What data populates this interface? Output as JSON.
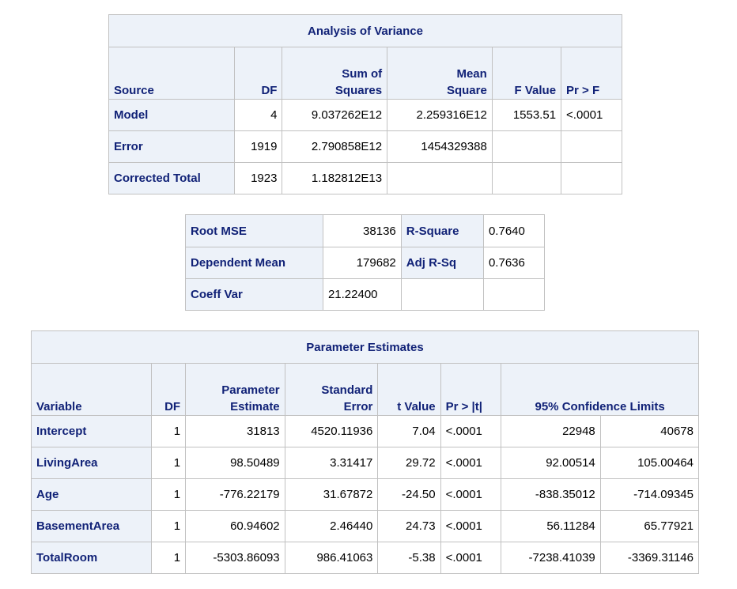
{
  "anova": {
    "title": "Analysis of Variance",
    "headers": {
      "source": "Source",
      "df": "DF",
      "ss_1": "Sum of",
      "ss_2": "Squares",
      "ms_1": "Mean",
      "ms_2": "Square",
      "f": "F Value",
      "p": "Pr > F"
    },
    "rows": [
      {
        "source": "Model",
        "df": "4",
        "ss": "9.037262E12",
        "ms": "2.259316E12",
        "f": "1553.51",
        "p": "<.0001"
      },
      {
        "source": "Error",
        "df": "1919",
        "ss": "2.790858E12",
        "ms": "1454329388",
        "f": "",
        "p": ""
      },
      {
        "source": "Corrected Total",
        "df": "1923",
        "ss": "1.182812E13",
        "ms": "",
        "f": "",
        "p": ""
      }
    ]
  },
  "fit": {
    "rows": [
      {
        "label1": "Root MSE",
        "value1": "38136",
        "label2": "R-Square",
        "value2": "0.7640"
      },
      {
        "label1": "Dependent Mean",
        "value1": "179682",
        "label2": "Adj R-Sq",
        "value2": "0.7636"
      },
      {
        "label1": "Coeff Var",
        "value1": "21.22400",
        "label2": "",
        "value2": ""
      }
    ]
  },
  "params": {
    "title": "Parameter Estimates",
    "headers": {
      "variable": "Variable",
      "df": "DF",
      "est_1": "Parameter",
      "est_2": "Estimate",
      "se_1": "Standard",
      "se_2": "Error",
      "t": "t Value",
      "p": "Pr > |t|",
      "cl": "95% Confidence Limits"
    },
    "rows": [
      {
        "variable": "Intercept",
        "df": "1",
        "est": "31813",
        "se": "4520.11936",
        "t": "7.04",
        "p": "<.0001",
        "lcl": "22948",
        "ucl": "40678"
      },
      {
        "variable": "LivingArea",
        "df": "1",
        "est": "98.50489",
        "se": "3.31417",
        "t": "29.72",
        "p": "<.0001",
        "lcl": "92.00514",
        "ucl": "105.00464"
      },
      {
        "variable": "Age",
        "df": "1",
        "est": "-776.22179",
        "se": "31.67872",
        "t": "-24.50",
        "p": "<.0001",
        "lcl": "-838.35012",
        "ucl": "-714.09345"
      },
      {
        "variable": "BasementArea",
        "df": "1",
        "est": "60.94602",
        "se": "2.46440",
        "t": "24.73",
        "p": "<.0001",
        "lcl": "56.11284",
        "ucl": "65.77921"
      },
      {
        "variable": "TotalRoom",
        "df": "1",
        "est": "-5303.86093",
        "se": "986.41063",
        "t": "-5.38",
        "p": "<.0001",
        "lcl": "-7238.41039",
        "ucl": "-3369.31146"
      }
    ]
  }
}
